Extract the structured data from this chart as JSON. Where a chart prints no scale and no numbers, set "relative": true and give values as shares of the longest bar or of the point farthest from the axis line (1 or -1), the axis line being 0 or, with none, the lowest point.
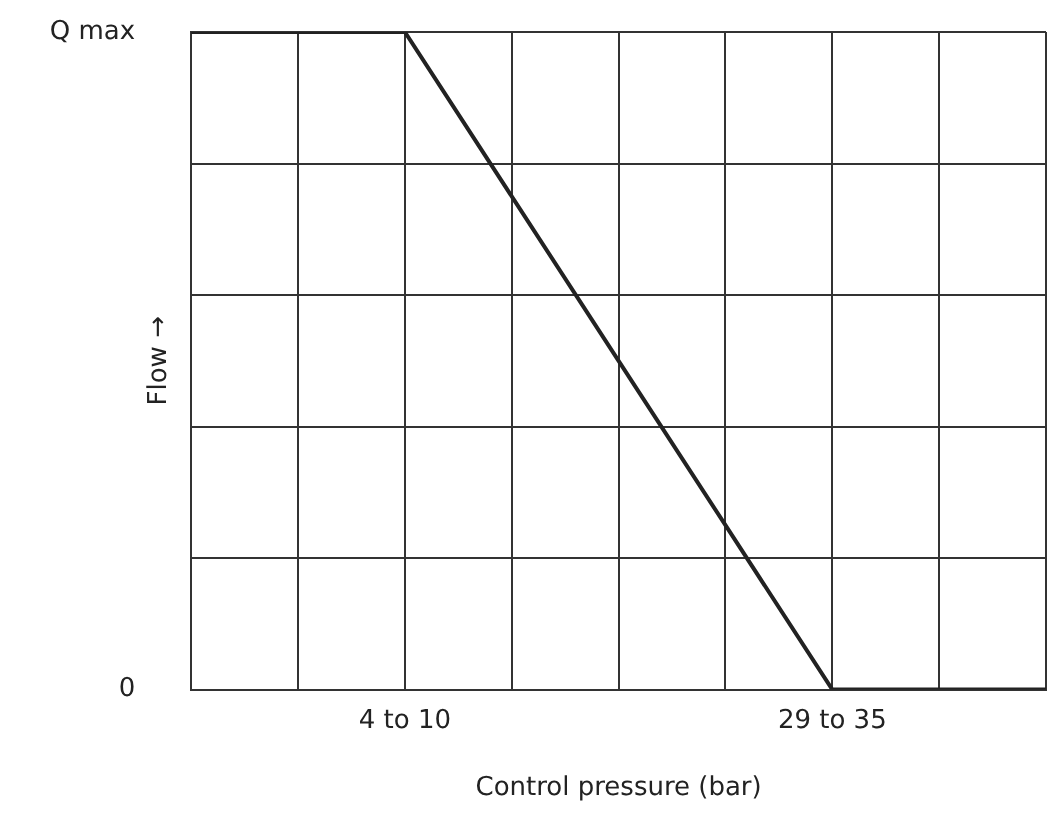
{
  "chart_data": {
    "type": "line",
    "xlabel": "Control pressure (bar)",
    "ylabel": "Flow →",
    "categories": [
      null,
      null,
      "4 to 10",
      null,
      null,
      null,
      "29 to 35",
      null,
      null
    ],
    "series": [
      {
        "color": "#222222",
        "values": [
          1,
          1,
          1,
          0.75,
          0.5,
          0.25,
          0,
          0,
          0
        ]
      }
    ],
    "relative": true,
    "annotations": [
      "Q max",
      "0"
    ],
    "grid": true,
    "legend": false,
    "marker": "none",
    "line_style": "solid"
  }
}
